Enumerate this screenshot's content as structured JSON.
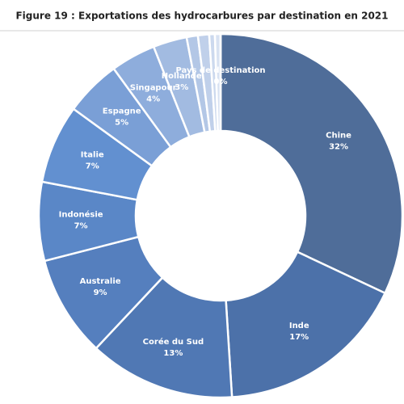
{
  "chart_data": {
    "type": "donut",
    "title": "Figure 19 : Exportations des hydrocarbures par destination en 2021",
    "categories": [
      "Chine",
      "Inde",
      "Corée du Sud",
      "Australie",
      "Indonésie",
      "Italie",
      "Espagne",
      "Singapour",
      "Hollande",
      null,
      null,
      null,
      null,
      "Pays de destination"
    ],
    "values": [
      32,
      17,
      13,
      9,
      7,
      7,
      5,
      4,
      3,
      1,
      1,
      0.5,
      0.5,
      0
    ],
    "value_labels": [
      "32%",
      "17%",
      "13%",
      "9%",
      "7%",
      "7%",
      "5%",
      "4%",
      "3%",
      null,
      null,
      null,
      null,
      "0%"
    ],
    "colors": [
      "#4f6d99",
      "#4c71a9",
      "#5078b4",
      "#557fbe",
      "#5a87c7",
      "#6290d0",
      "#7a9fd6",
      "#8eaddc",
      "#a2bbe1",
      "#b3c7e6",
      "#c0d0ea",
      "#ccd9ee",
      "#d8e2f2",
      "#e4eaf5"
    ]
  }
}
